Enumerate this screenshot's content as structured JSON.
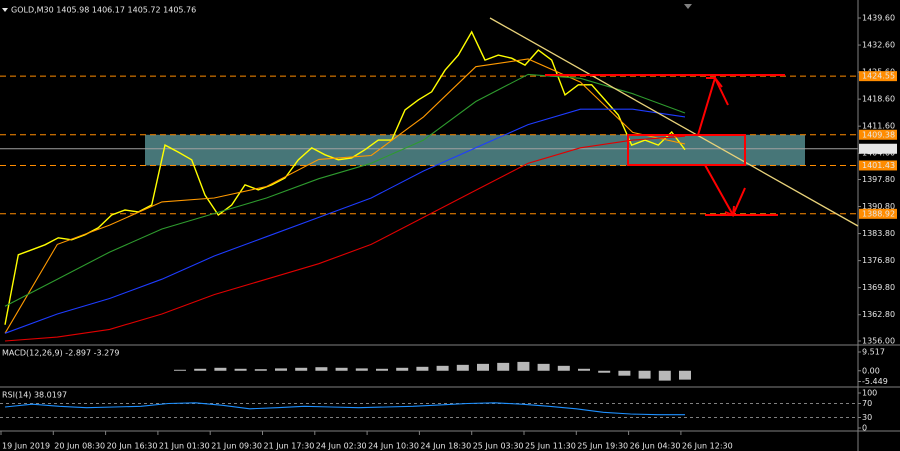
{
  "header": {
    "symbol_info": "GOLD,M30 1405.98 1406.17 1405.72 1405.76"
  },
  "time_axis": [
    "19 Jun 2019",
    "20 Jun 08:30",
    "20 Jun 16:30",
    "21 Jun 01:30",
    "21 Jun 09:30",
    "21 Jun 17:30",
    "24 Jun 02:30",
    "24 Jun 10:30",
    "24 Jun 18:30",
    "25 Jun 03:30",
    "25 Jun 11:30",
    "25 Jun 19:30",
    "26 Jun 04:30",
    "26 Jun 12:30"
  ],
  "chart_data": [
    {
      "type": "line",
      "ylim": [
        1356.0,
        1439.6
      ],
      "yticks": [
        {
          "value": 1439.6,
          "label": "1439.60"
        },
        {
          "value": 1432.6,
          "label": "1432.60"
        },
        {
          "value": 1425.6,
          "label": "1425.60"
        },
        {
          "value": 1418.6,
          "label": "1418.60"
        },
        {
          "value": 1411.6,
          "label": "1411.60"
        },
        {
          "value": 1404.6,
          "label": "1404.60"
        },
        {
          "value": 1397.8,
          "label": "1397.80"
        },
        {
          "value": 1390.8,
          "label": "1390.80"
        },
        {
          "value": 1383.8,
          "label": "1383.80"
        },
        {
          "value": 1376.8,
          "label": "1376.80"
        },
        {
          "value": 1369.8,
          "label": "1369.80"
        },
        {
          "value": 1362.8,
          "label": "1362.80"
        },
        {
          "value": 1356.0,
          "label": "1356.00"
        }
      ],
      "levels": [
        1424.55,
        1409.38,
        1401.43,
        1388.92
      ],
      "level_color": "#ff8c00",
      "zone_color": "#5f9ea0",
      "current_price": 1405.76,
      "series": [
        {
          "color": "#ffff00",
          "values": [
            1360.2,
            1378.3,
            1379.6,
            1380.9,
            1382.7,
            1382.2,
            1383.5,
            1385.3,
            1388.6,
            1389.9,
            1389.4,
            1391.2,
            1406.7,
            1404.9,
            1402.9,
            1393.8,
            1388.6,
            1391.2,
            1396.4,
            1395.1,
            1396.4,
            1398.2,
            1402.9,
            1406.0,
            1404.2,
            1402.9,
            1403.4,
            1405.5,
            1408.0,
            1408.0,
            1415.8,
            1418.4,
            1420.5,
            1426.1,
            1430.0,
            1436.0,
            1428.7,
            1430.0,
            1429.2,
            1427.4,
            1431.3,
            1428.7,
            1419.7,
            1422.3,
            1422.3,
            1418.4,
            1414.5,
            1406.7,
            1408.0,
            1406.7,
            1410.1,
            1405.5
          ]
        },
        {
          "color": "#ff9900",
          "values": [
            1358,
            1381,
            1386,
            1392,
            1393,
            1396,
            1403,
            1404,
            1414,
            1427,
            1429,
            1423,
            1410,
            1407
          ]
        },
        {
          "color": "#2e9b2e",
          "values": [
            1365,
            1372,
            1379,
            1385,
            1389,
            1393,
            1398,
            1402,
            1408,
            1418,
            1425,
            1424,
            1420,
            1415
          ]
        },
        {
          "color": "#1e3cff",
          "values": [
            1358,
            1363,
            1367,
            1372,
            1378,
            1383,
            1388,
            1393,
            1400,
            1406,
            1412,
            1416,
            1416,
            1414
          ]
        },
        {
          "color": "#e00000",
          "values": [
            1356,
            1357,
            1359,
            1363,
            1368,
            1372,
            1376,
            1381,
            1388,
            1395,
            1402,
            1406,
            1408,
            1409
          ]
        }
      ]
    },
    {
      "type": "bar",
      "title": "MACD(12,26,9) -2.897 -3.279",
      "color": "#d8d8d8",
      "ylim": [
        -5.449,
        9.517
      ],
      "yticks": [
        9.517,
        {
          "value": 0,
          "label": "0.00"
        },
        -5.449
      ],
      "values": [
        0.5,
        1,
        1.5,
        1,
        0.8,
        1.2,
        1.5,
        1.8,
        1.5,
        1.2,
        1,
        1.5,
        2,
        2.5,
        3,
        3.5,
        4,
        4.5,
        3.5,
        2.5,
        1,
        -1,
        -2.5,
        -4,
        -5,
        -4.5
      ]
    },
    {
      "type": "line",
      "title": "RSI(14) 38.0197",
      "ylim": [
        0,
        100
      ],
      "yticks": [
        100,
        70,
        30,
        0
      ],
      "series": [
        {
          "color": "#1e90ff",
          "values": [
            60,
            68,
            62,
            58,
            60,
            62,
            70,
            72,
            65,
            55,
            58,
            62,
            60,
            58,
            60,
            62,
            66,
            70,
            72,
            68,
            62,
            55,
            45,
            40,
            38,
            38
          ]
        }
      ]
    }
  ]
}
